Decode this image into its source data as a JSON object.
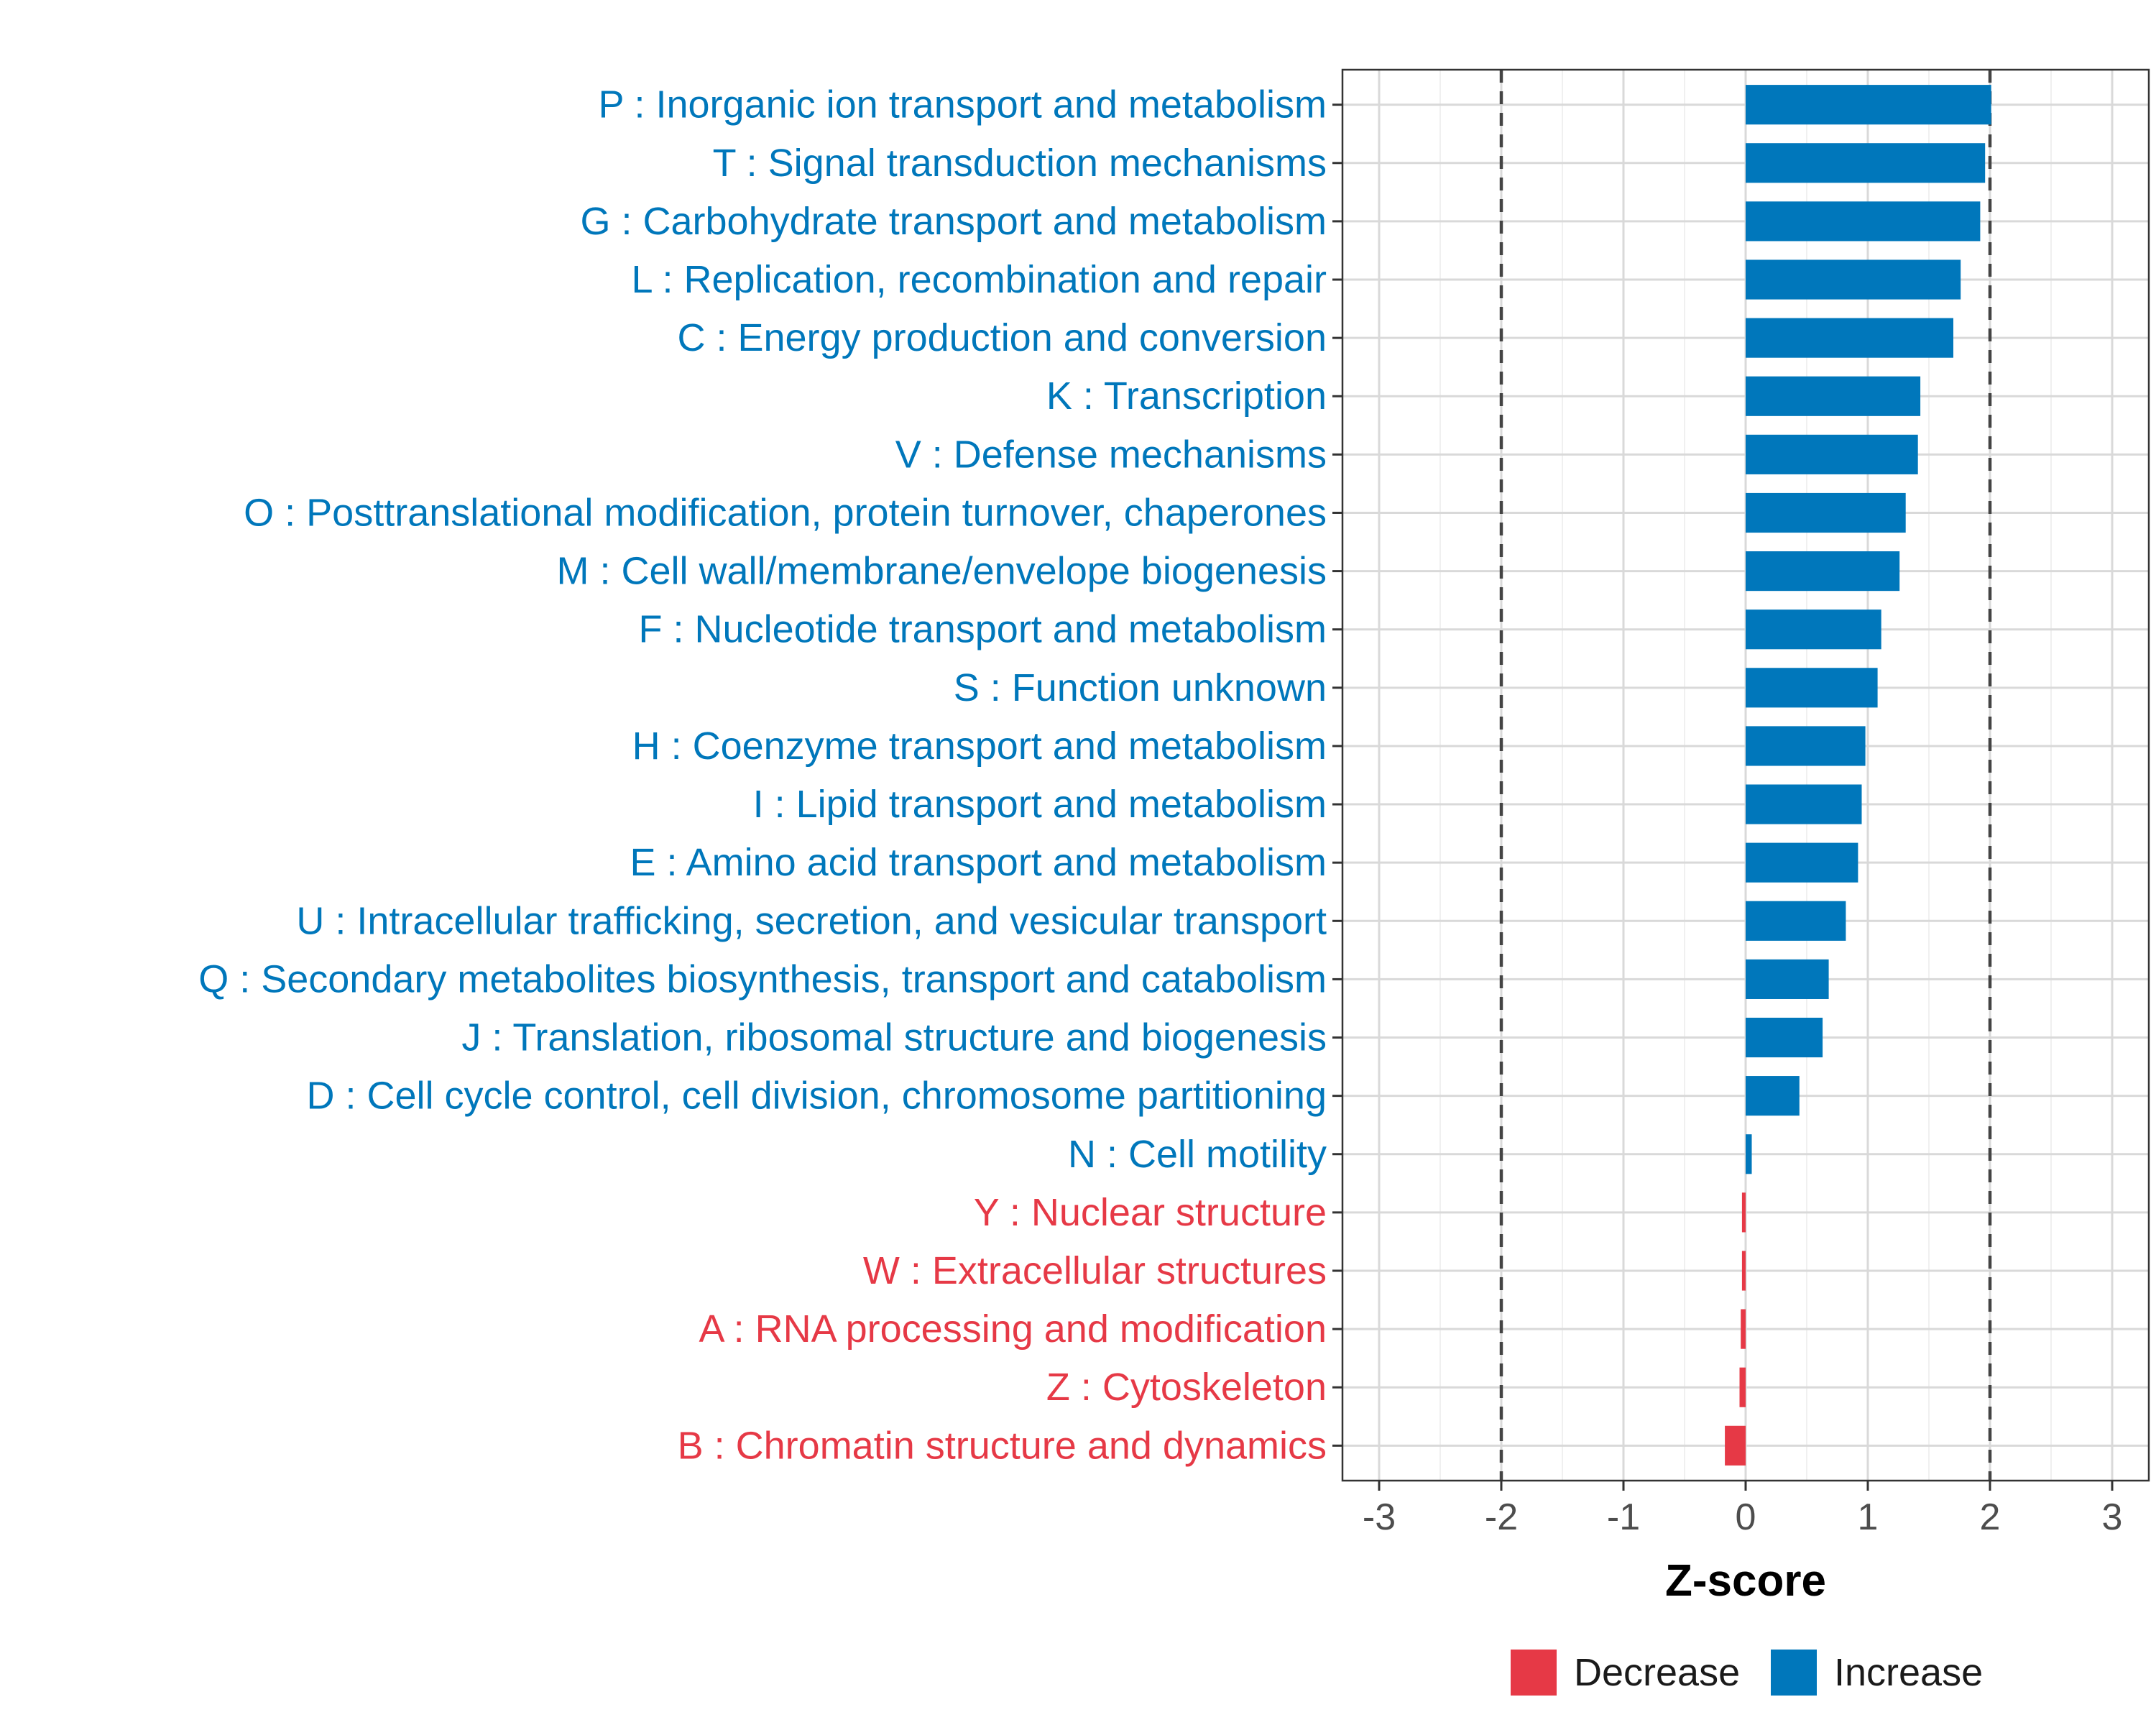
{
  "chart_data": {
    "type": "bar",
    "orientation": "horizontal",
    "title": "",
    "xlabel": "Z-score",
    "ylabel": "",
    "xlim": [
      -3.3,
      3.3
    ],
    "xticks": [
      -3,
      -2,
      -1,
      0,
      1,
      2,
      3
    ],
    "xtick_labels": [
      "-3",
      "-2",
      "-1",
      "0",
      "1",
      "2",
      "3"
    ],
    "reference_lines": [
      -2,
      2
    ],
    "grid": true,
    "legend_position": "bottom",
    "colors": {
      "Increase": "#0077bb",
      "Decrease": "#e63946"
    },
    "legend": [
      {
        "label": "Decrease",
        "color": "#e63946"
      },
      {
        "label": "Increase",
        "color": "#0077bb"
      }
    ],
    "categories": [
      "P : Inorganic ion transport and metabolism",
      "T : Signal transduction mechanisms",
      "G : Carbohydrate transport and metabolism",
      "L : Replication, recombination and repair",
      "C : Energy production and conversion",
      "K : Transcription",
      "V : Defense mechanisms",
      "O : Posttranslational modification, protein turnover, chaperones",
      "M : Cell wall/membrane/envelope biogenesis",
      "F : Nucleotide transport and metabolism",
      "S : Function unknown",
      "H : Coenzyme transport and metabolism",
      "I : Lipid transport and metabolism",
      "E : Amino acid transport and metabolism",
      "U : Intracellular trafficking, secretion, and vesicular transport",
      "Q : Secondary metabolites biosynthesis, transport and catabolism",
      "J : Translation, ribosomal structure and biogenesis",
      "D : Cell cycle control, cell division, chromosome partitioning",
      "N : Cell motility",
      "Y : Nuclear structure",
      "W : Extracellular structures",
      "A : RNA processing and modification",
      "Z : Cytoskeleton",
      "B : Chromatin structure and dynamics"
    ],
    "values": [
      2.01,
      1.96,
      1.92,
      1.76,
      1.7,
      1.43,
      1.41,
      1.31,
      1.26,
      1.11,
      1.08,
      0.98,
      0.95,
      0.92,
      0.82,
      0.68,
      0.63,
      0.44,
      0.05,
      -0.03,
      -0.03,
      -0.04,
      -0.05,
      -0.17
    ],
    "groups": [
      "Increase",
      "Increase",
      "Increase",
      "Increase",
      "Increase",
      "Increase",
      "Increase",
      "Increase",
      "Increase",
      "Increase",
      "Increase",
      "Increase",
      "Increase",
      "Increase",
      "Increase",
      "Increase",
      "Increase",
      "Increase",
      "Increase",
      "Decrease",
      "Decrease",
      "Decrease",
      "Decrease",
      "Decrease"
    ]
  }
}
